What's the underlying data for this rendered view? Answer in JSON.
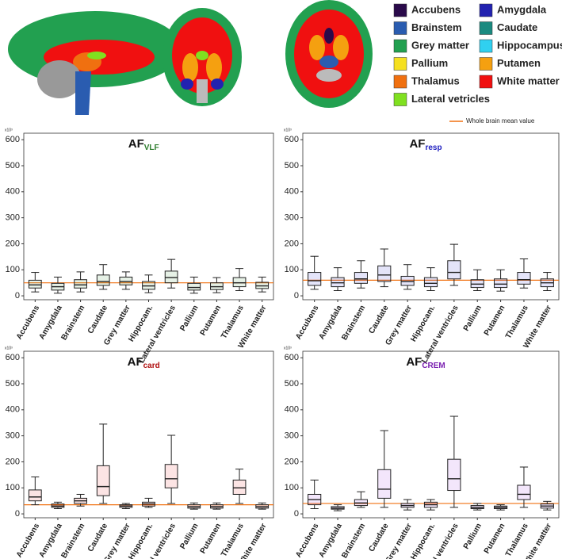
{
  "legend": {
    "items": [
      {
        "label": "Accubens",
        "color": "#2a0a4a"
      },
      {
        "label": "Amygdala",
        "color": "#2222b0"
      },
      {
        "label": "Brainstem",
        "color": "#2a5cb0"
      },
      {
        "label": "Caudate",
        "color": "#1a8a80"
      },
      {
        "label": "Grey matter",
        "color": "#22a050"
      },
      {
        "label": "Hippocampus",
        "color": "#30d0f0"
      },
      {
        "label": "Pallium",
        "color": "#f5e020"
      },
      {
        "label": "Putamen",
        "color": "#f5a010"
      },
      {
        "label": "Thalamus",
        "color": "#f07010"
      },
      {
        "label": "White matter",
        "color": "#f01010"
      },
      {
        "label": "Lateral vetricles",
        "color": "#80e020"
      }
    ],
    "mean_label": "Whole brain mean value",
    "mean_color": "#f07010"
  },
  "chart_data": [
    {
      "type": "box",
      "title": "AF",
      "title_sub": "VLF",
      "title_color": "#2e7d2e",
      "color": "#2e8b2e",
      "multiplier": "x10³",
      "categories": [
        "Accubens",
        "Amygdala",
        "Brainstem",
        "Caudate",
        "Grey matter",
        "Hippocam.",
        "Lateral ventricles",
        "Pallium",
        "Putamen",
        "Thalamus",
        "White matter"
      ],
      "min": [
        15,
        10,
        15,
        25,
        25,
        12,
        30,
        10,
        12,
        20,
        15
      ],
      "q1": [
        30,
        22,
        30,
        40,
        42,
        25,
        50,
        22,
        24,
        35,
        28
      ],
      "median": [
        42,
        35,
        42,
        55,
        55,
        38,
        70,
        32,
        35,
        50,
        38
      ],
      "q3": [
        60,
        48,
        62,
        80,
        72,
        55,
        95,
        48,
        50,
        70,
        52
      ],
      "max": [
        90,
        72,
        92,
        120,
        92,
        80,
        140,
        72,
        70,
        105,
        72
      ],
      "mean": 50,
      "ylim": [
        -15,
        625
      ],
      "yticks": [
        0,
        100,
        200,
        300,
        400,
        500,
        600
      ]
    },
    {
      "type": "box",
      "title": "AF",
      "title_sub": "resp",
      "title_color": "#2020c0",
      "color": "#2020d0",
      "multiplier": "x10³",
      "categories": [
        "Accubens",
        "Amygdala",
        "Brainstem",
        "Caudate",
        "Grey matter",
        "Hippocam.",
        "Lateral ventricles",
        "Pallium",
        "Putamen",
        "Thalamus",
        "White matter"
      ],
      "min": [
        25,
        20,
        30,
        35,
        25,
        20,
        40,
        20,
        18,
        30,
        20
      ],
      "q1": [
        40,
        35,
        48,
        55,
        40,
        35,
        65,
        32,
        32,
        45,
        35
      ],
      "median": [
        58,
        50,
        65,
        80,
        55,
        48,
        90,
        45,
        45,
        62,
        50
      ],
      "q3": [
        90,
        70,
        90,
        115,
        75,
        70,
        135,
        62,
        65,
        90,
        65
      ],
      "max": [
        152,
        108,
        135,
        180,
        120,
        108,
        198,
        100,
        100,
        142,
        90
      ],
      "mean": 60,
      "ylim": [
        -15,
        625
      ],
      "yticks": [
        0,
        100,
        200,
        300,
        400,
        500,
        600
      ]
    },
    {
      "type": "box",
      "title": "AF",
      "title_sub": "card",
      "title_color": "#b01010",
      "color": "#e82020",
      "multiplier": "x10³",
      "categories": [
        "Accubens",
        "Amygdala",
        "Brainstem",
        "Caudate",
        "Grey matter",
        "Hippocam.",
        "Lateral ventricles",
        "Pallium",
        "Putamen",
        "Thalamus",
        "White matter"
      ],
      "min": [
        35,
        20,
        30,
        40,
        20,
        25,
        40,
        18,
        18,
        40,
        18
      ],
      "q1": [
        50,
        25,
        40,
        70,
        25,
        30,
        100,
        22,
        22,
        75,
        22
      ],
      "median": [
        65,
        30,
        50,
        105,
        30,
        38,
        135,
        28,
        28,
        100,
        28
      ],
      "q3": [
        92,
        38,
        60,
        185,
        35,
        45,
        190,
        35,
        35,
        130,
        35
      ],
      "max": [
        142,
        45,
        75,
        345,
        40,
        60,
        302,
        42,
        42,
        172,
        42
      ],
      "mean": 35,
      "ylim": [
        -15,
        625
      ],
      "yticks": [
        0,
        100,
        200,
        300,
        400,
        500,
        600
      ]
    },
    {
      "type": "box",
      "title": "AF",
      "title_sub": "CREM",
      "title_color": "#7a20b0",
      "color": "#9a30e0",
      "multiplier": "x10³",
      "categories": [
        "Accubens",
        "Amygdala",
        "Brainstem",
        "Caudate",
        "Grey matter",
        "Hippocam.",
        "Lateral ventricles",
        "Pallium",
        "Putamen",
        "Thalamus",
        "White matter"
      ],
      "min": [
        20,
        12,
        25,
        25,
        15,
        15,
        25,
        15,
        15,
        25,
        15
      ],
      "q1": [
        35,
        18,
        32,
        60,
        25,
        25,
        90,
        20,
        20,
        55,
        22
      ],
      "median": [
        55,
        22,
        42,
        95,
        32,
        35,
        135,
        25,
        25,
        75,
        30
      ],
      "q3": [
        75,
        28,
        55,
        170,
        40,
        45,
        210,
        32,
        30,
        110,
        38
      ],
      "max": [
        130,
        35,
        85,
        320,
        55,
        55,
        375,
        40,
        35,
        180,
        48
      ],
      "mean": 40,
      "ylim": [
        -15,
        625
      ],
      "yticks": [
        0,
        100,
        200,
        300,
        400,
        500,
        600
      ]
    }
  ]
}
